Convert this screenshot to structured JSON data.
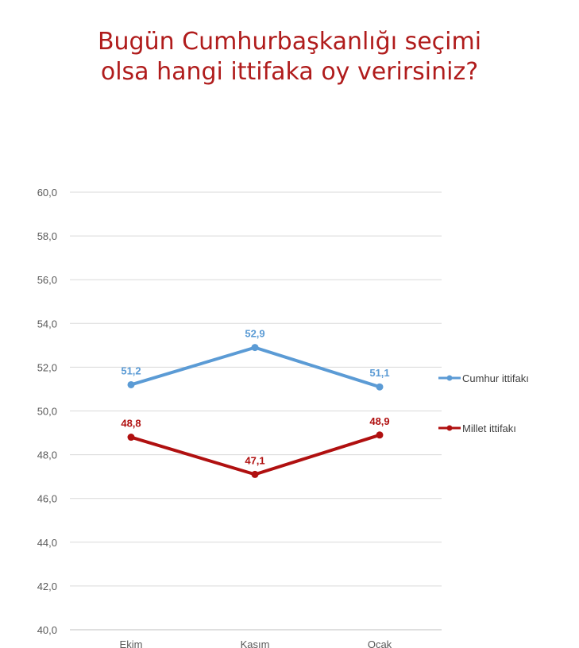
{
  "title_lines": [
    "Bugün Cumhurbaşkanlığı seçimi",
    "olsa hangi ittifaka oy verirsiniz?"
  ],
  "chart_data": {
    "type": "line",
    "title": "Bugün Cumhurbaşkanlığı seçimi olsa hangi ittifaka oy verirsiniz?",
    "categories": [
      "Ekim",
      "Kasım",
      "Ocak"
    ],
    "series": [
      {
        "name": "Cumhur ittifakı",
        "values": [
          51.2,
          52.9,
          51.1
        ],
        "labels": [
          "51,2",
          "52,9",
          "51,1"
        ],
        "color": "#5b9bd5"
      },
      {
        "name": "Millet ittifakı",
        "values": [
          48.8,
          47.1,
          48.9
        ],
        "labels": [
          "48,8",
          "47,1",
          "48,9"
        ],
        "color": "#b01010"
      }
    ],
    "y_ticks": [
      "40,0",
      "42,0",
      "44,0",
      "46,0",
      "48,0",
      "50,0",
      "52,0",
      "54,0",
      "56,0",
      "58,0",
      "60,0"
    ],
    "ylim": [
      40,
      60
    ],
    "xlabel": "",
    "ylabel": "",
    "grid": true,
    "legend": "right"
  }
}
